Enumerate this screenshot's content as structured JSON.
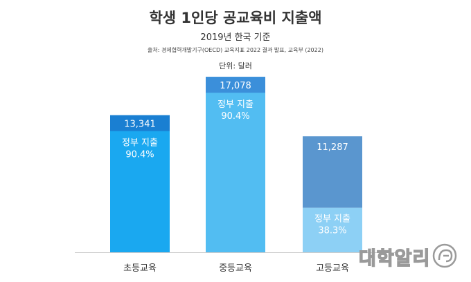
{
  "header": {
    "title": "학생 1인당 공교육비 지출액",
    "subtitle": "2019년 한국 기준",
    "source": "출처: 경제협력개발기구(OECD) 교육지표 2022 결과 발표, 교육부 (2022)",
    "unit": "단위: 달러"
  },
  "chart_data": {
    "type": "bar",
    "title": "학생 1인당 공교육비 지출액",
    "subtitle": "2019년 한국 기준",
    "unit": "달러",
    "categories": [
      "초등교육",
      "중등교육",
      "고등교육"
    ],
    "values": [
      13341,
      17078,
      11287
    ],
    "value_labels": [
      "13,341",
      "17,078",
      "11,287"
    ],
    "government_share": [
      0.904,
      0.904,
      0.383
    ],
    "segment_label": "정부 지출",
    "share_labels": [
      "90.4%",
      "90.4%",
      "38.3%"
    ],
    "ylim": [
      0,
      18500
    ],
    "grid": false,
    "legend": "none"
  },
  "colors": {
    "bar_top": [
      "#1a7fd2",
      "#3b8fda",
      "#5a96cf"
    ],
    "bar_body": [
      "#1aa8f0",
      "#52bdf2",
      "#5a96cf"
    ],
    "gov_segment": [
      "#1aa8f0",
      "#52bdf2",
      "#8dd0f5"
    ],
    "axis": "#cccccc",
    "text": "#333333"
  },
  "watermark": {
    "text": "대학알리"
  }
}
